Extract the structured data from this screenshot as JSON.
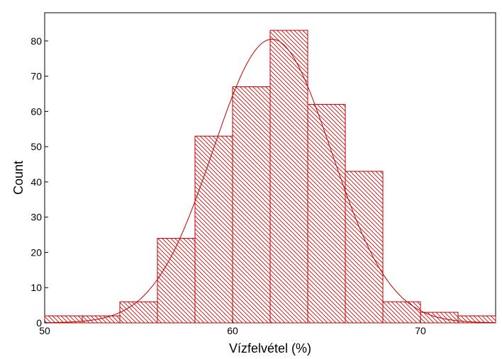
{
  "chart_data": {
    "type": "bar",
    "subtype": "histogram",
    "xlabel": "Vízfelvétel (%)",
    "ylabel": "Count",
    "xlim": [
      50,
      74
    ],
    "ylim": [
      0,
      88
    ],
    "x_ticks": [
      {
        "value": 50,
        "label": "50"
      },
      {
        "value": 60,
        "label": "60"
      },
      {
        "value": 70,
        "label": "70"
      }
    ],
    "y_ticks": [
      {
        "value": 0,
        "label": "0"
      },
      {
        "value": 10,
        "label": "10"
      },
      {
        "value": 20,
        "label": "20"
      },
      {
        "value": 30,
        "label": "30"
      },
      {
        "value": 40,
        "label": "40"
      },
      {
        "value": 50,
        "label": "50"
      },
      {
        "value": 60,
        "label": "60"
      },
      {
        "value": 70,
        "label": "70"
      },
      {
        "value": 80,
        "label": "80"
      }
    ],
    "bins": [
      {
        "start": 50,
        "end": 52,
        "count": 2
      },
      {
        "start": 52,
        "end": 54,
        "count": 2
      },
      {
        "start": 54,
        "end": 56,
        "count": 6
      },
      {
        "start": 56,
        "end": 58,
        "count": 24
      },
      {
        "start": 58,
        "end": 60,
        "count": 53
      },
      {
        "start": 60,
        "end": 62,
        "count": 67
      },
      {
        "start": 62,
        "end": 64,
        "count": 83
      },
      {
        "start": 64,
        "end": 66,
        "count": 62
      },
      {
        "start": 66,
        "end": 68,
        "count": 43
      },
      {
        "start": 68,
        "end": 70,
        "count": 6
      },
      {
        "start": 70,
        "end": 72,
        "count": 3
      },
      {
        "start": 72,
        "end": 74,
        "count": 2
      }
    ],
    "normal_curve": {
      "mean": 62.1,
      "sd": 3.15,
      "peak": 80.5
    },
    "bar_color": "#c00000",
    "bar_fill": "diagonal-hatch",
    "curve_color": "#c00000",
    "grid": false
  }
}
